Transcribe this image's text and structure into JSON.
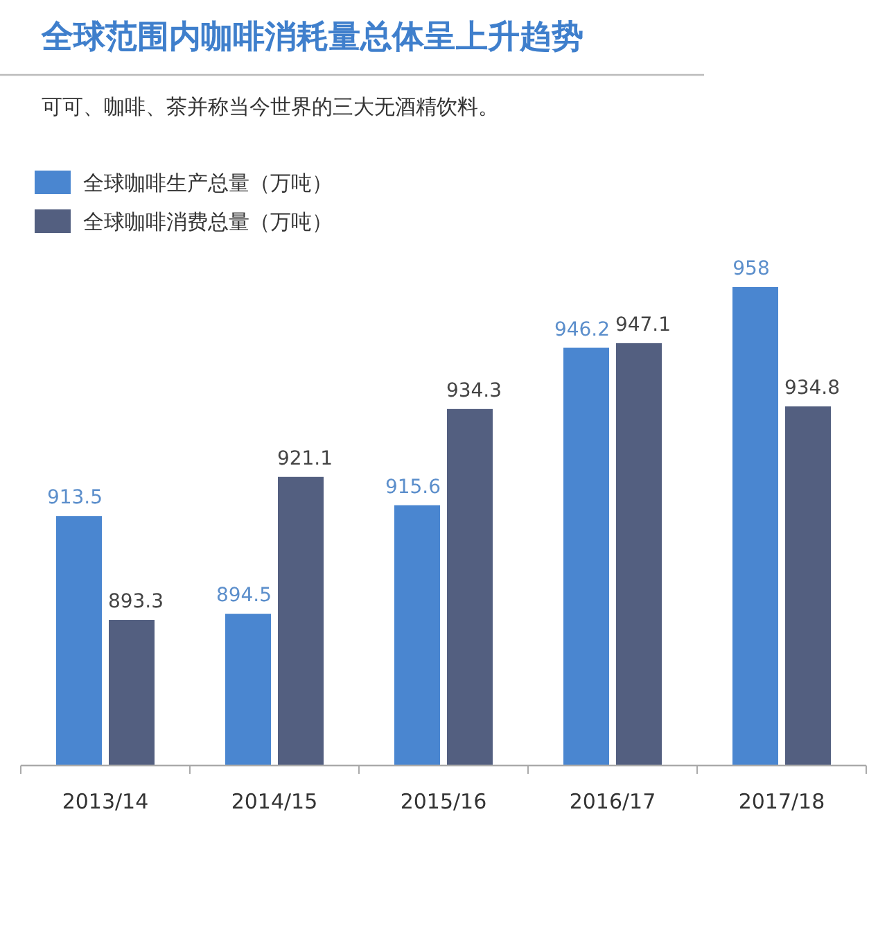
{
  "chart_data": {
    "type": "bar",
    "title": "全球范围内咖啡消耗量总体呈上升趋势",
    "subtitle": "可可、咖啡、茶并称当今世界的三大无酒精饮料。",
    "categories": [
      "2013/14",
      "2014/15",
      "2015/16",
      "2016/17",
      "2017/18"
    ],
    "series": [
      {
        "name": "全球咖啡生产总量（万吨）",
        "color": "#4a86d0",
        "values": [
          913.5,
          894.5,
          915.6,
          946.2,
          958
        ]
      },
      {
        "name": "全球咖啡消费总量（万吨）",
        "color": "#535f80",
        "values": [
          893.3,
          921.1,
          934.3,
          947.1,
          934.8
        ]
      }
    ],
    "ylim": [
      865,
      958
    ],
    "data_labels": true,
    "legend": "top left",
    "grid": false
  }
}
